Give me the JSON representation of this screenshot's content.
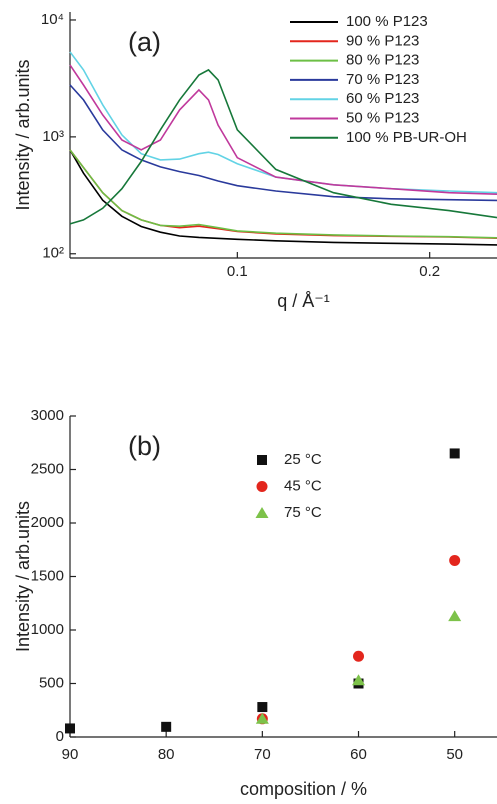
{
  "chart_data": [
    {
      "type": "line",
      "annotation": "(a)",
      "x_label": "q / Å⁻¹",
      "y_label": "Intensity / arb.units",
      "log_y": true,
      "xlim": [
        0.013,
        0.235
      ],
      "ylim": [
        92,
        11700
      ],
      "xticks": [
        0.1,
        0.2
      ],
      "yticks": [
        {
          "value": 100,
          "label": "10²"
        },
        {
          "value": 1000,
          "label": "10³"
        },
        {
          "value": 10000,
          "label": "10⁴"
        }
      ],
      "legend": "upper right",
      "series": [
        {
          "name": "100 % P123",
          "color": "#000000",
          "x": [
            0.013,
            0.02,
            0.03,
            0.04,
            0.05,
            0.06,
            0.07,
            0.08,
            0.1,
            0.12,
            0.15,
            0.18,
            0.21,
            0.235
          ],
          "values": [
            774,
            489,
            287,
            209,
            171,
            153,
            142,
            138,
            133,
            129,
            125,
            123,
            121,
            119
          ]
        },
        {
          "name": "90 % P123",
          "color": "#e3261d",
          "x": [
            0.013,
            0.03,
            0.04,
            0.05,
            0.06,
            0.07,
            0.08,
            0.09,
            0.1,
            0.12,
            0.15,
            0.18,
            0.21,
            0.235
          ],
          "values": [
            774,
            333,
            234,
            195,
            175,
            167,
            172,
            164,
            155,
            148,
            143,
            141,
            139,
            136
          ]
        },
        {
          "name": "80 % P123",
          "color": "#6cbf45",
          "x": [
            0.013,
            0.03,
            0.04,
            0.05,
            0.06,
            0.07,
            0.08,
            0.09,
            0.1,
            0.12,
            0.15,
            0.18,
            0.21,
            0.235
          ],
          "values": [
            774,
            333,
            234,
            195,
            175,
            172,
            178,
            167,
            157,
            150,
            145,
            142,
            140,
            137
          ]
        },
        {
          "name": "70 % P123",
          "color": "#2a3a9c",
          "x": [
            0.013,
            0.02,
            0.03,
            0.04,
            0.05,
            0.06,
            0.07,
            0.08,
            0.09,
            0.1,
            0.12,
            0.15,
            0.18,
            0.21,
            0.235
          ],
          "values": [
            2783,
            2070,
            1148,
            773,
            635,
            553,
            505,
            467,
            419,
            382,
            344,
            308,
            295,
            290,
            286
          ]
        },
        {
          "name": "60 % P123",
          "color": "#62d3e5",
          "x": [
            0.013,
            0.02,
            0.03,
            0.04,
            0.05,
            0.06,
            0.07,
            0.08,
            0.085,
            0.09,
            0.1,
            0.12,
            0.15,
            0.18,
            0.21,
            0.235
          ],
          "values": [
            5330,
            3740,
            1880,
            1040,
            718,
            635,
            645,
            718,
            740,
            706,
            589,
            453,
            389,
            360,
            344,
            333
          ]
        },
        {
          "name": "50 % P123",
          "color": "#c0399c",
          "x": [
            0.013,
            0.02,
            0.03,
            0.04,
            0.05,
            0.06,
            0.07,
            0.08,
            0.085,
            0.09,
            0.1,
            0.12,
            0.15,
            0.18,
            0.21,
            0.235
          ],
          "values": [
            4130,
            2780,
            1540,
            940,
            775,
            940,
            1700,
            2520,
            2070,
            1260,
            664,
            453,
            389,
            360,
            333,
            323
          ]
        },
        {
          "name": "100 % PB-UR-OH",
          "color": "#17783a",
          "x": [
            0.013,
            0.02,
            0.03,
            0.04,
            0.05,
            0.06,
            0.07,
            0.08,
            0.085,
            0.09,
            0.1,
            0.12,
            0.15,
            0.18,
            0.21,
            0.235
          ],
          "values": [
            180,
            195,
            245,
            360,
            615,
            1150,
            2070,
            3380,
            3740,
            3070,
            1150,
            527,
            333,
            265,
            234,
            204
          ]
        }
      ]
    },
    {
      "type": "scatter",
      "annotation": "(b)",
      "x_label": "composition / %",
      "y_label": "Intensity / arb.units",
      "xlim": [
        90,
        45.6
      ],
      "ylim": [
        0,
        3000
      ],
      "xticks": [
        90,
        80,
        70,
        60,
        50
      ],
      "yticks": [
        0,
        500,
        1000,
        1500,
        2000,
        2500,
        3000
      ],
      "legend": "upper center",
      "series": [
        {
          "name": "25 °C",
          "color": "#111111",
          "marker": "square",
          "x": [
            90,
            80,
            70,
            60,
            50
          ],
          "values": [
            80,
            95,
            280,
            500,
            2650
          ]
        },
        {
          "name": "45 °C",
          "color": "#e3261d",
          "marker": "circle",
          "x": [
            70,
            60,
            50
          ],
          "values": [
            170,
            755,
            1650
          ]
        },
        {
          "name": "75 °C",
          "color": "#7dc24a",
          "marker": "triangle",
          "x": [
            70,
            60,
            50
          ],
          "values": [
            170,
            530,
            1130
          ]
        }
      ]
    }
  ]
}
